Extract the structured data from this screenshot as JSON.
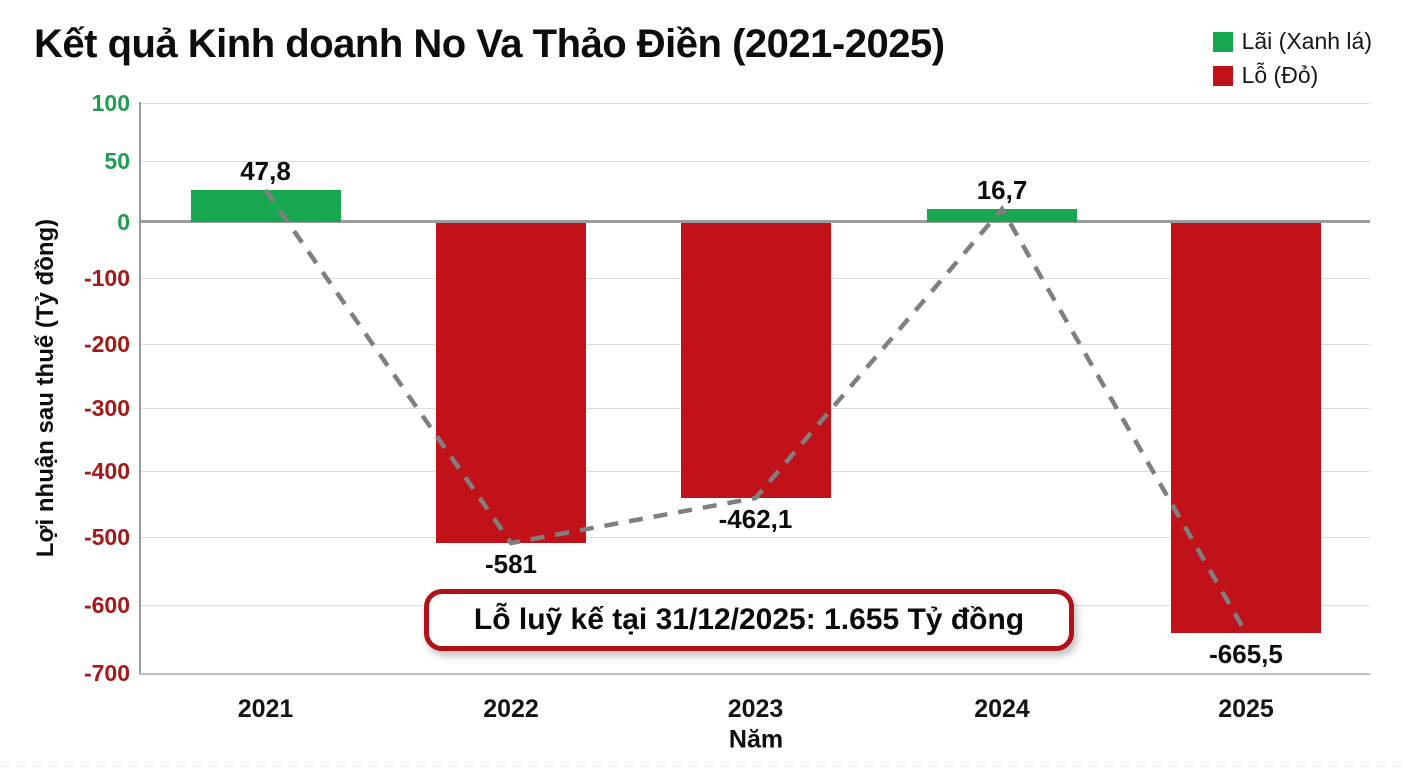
{
  "title": "Kết quả Kinh doanh No Va Thảo Điền (2021-2025)",
  "legend": {
    "items": [
      {
        "label": "Lãi (Xanh lá)",
        "color": "#18a650"
      },
      {
        "label": "Lỗ (Đỏ)",
        "color": "#c1121a"
      }
    ]
  },
  "annotation": {
    "text": "Lỗ luỹ kế tại 31/12/2025: 1.655 Tỷ đồng",
    "border_color": "#b01217"
  },
  "chart_data": {
    "type": "bar",
    "title": "Kết quả Kinh doanh No Va Thảo Điền (2021-2025)",
    "xlabel": "Năm",
    "ylabel": "Lợi nhuận sau thuế (Tỷ đồng)",
    "categories": [
      "2021",
      "2022",
      "2023",
      "2024",
      "2025"
    ],
    "values": [
      47.8,
      -581,
      -462.1,
      16.7,
      -665.5
    ],
    "value_labels": [
      "47,8",
      "-581",
      "-462,1",
      "16,7",
      "-665,5"
    ],
    "series_rule": "green bar when profit (value >= 0), red bar when loss (value < 0)",
    "colors": {
      "positive": "#18a650",
      "negative": "#c1121a"
    },
    "ylim": [
      -700,
      100
    ],
    "yticks": [
      100,
      50,
      0,
      -100,
      -200,
      -300,
      -400,
      -500,
      -600,
      -700
    ],
    "ytick_labels": [
      "100",
      "50",
      "0",
      "-100",
      "-200",
      "-300",
      "-400",
      "-500",
      "-600",
      "-700"
    ],
    "ytick_colors": {
      "nonnegative": "#1f9e50",
      "negative": "#a51a18"
    },
    "grid": true,
    "legend_position": "top-right",
    "trend_line": {
      "type": "dashed",
      "color": "#7f7f7f",
      "connects": "bar end points across years"
    },
    "annotation": "Lỗ luỹ kế tại 31/12/2025: 1.655 Tỷ đồng"
  }
}
